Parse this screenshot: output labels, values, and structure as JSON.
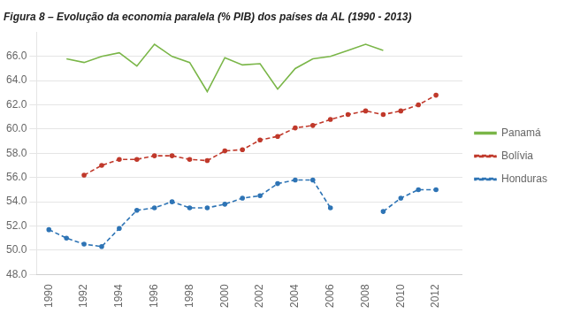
{
  "chart_data": {
    "type": "line",
    "title": "Figura 8 – Evolução da economia paralela (% PIB) dos países da AL (1990 - 2013)",
    "x": [
      1990,
      1991,
      1992,
      1993,
      1994,
      1995,
      1996,
      1997,
      1998,
      1999,
      2000,
      2001,
      2002,
      2003,
      2004,
      2005,
      2006,
      2007,
      2008,
      2009,
      2010,
      2011,
      2012,
      2013
    ],
    "series": [
      {
        "name": "Panamá",
        "color": "#7ab648",
        "line_style": "solid",
        "marker": "none",
        "values": [
          null,
          65.8,
          65.5,
          66.0,
          66.3,
          65.2,
          67.0,
          66.0,
          65.5,
          63.1,
          65.9,
          65.3,
          65.4,
          63.3,
          65.0,
          65.8,
          66.0,
          66.5,
          67.0,
          66.5,
          null,
          null,
          null,
          null
        ]
      },
      {
        "name": "Bolívia",
        "color": "#c0392b",
        "line_style": "dashed",
        "marker": "circle",
        "values": [
          null,
          null,
          56.2,
          57.0,
          57.5,
          57.5,
          57.8,
          57.8,
          57.5,
          57.4,
          58.2,
          58.3,
          59.1,
          59.4,
          60.1,
          60.3,
          60.8,
          61.2,
          61.5,
          61.2,
          61.5,
          62.0,
          62.8,
          null
        ]
      },
      {
        "name": "Honduras",
        "color": "#2e74b5",
        "line_style": "dashed",
        "marker": "circle",
        "values": [
          51.7,
          51.0,
          50.5,
          50.3,
          51.8,
          53.3,
          53.5,
          54.0,
          53.5,
          53.5,
          53.8,
          54.3,
          54.5,
          55.5,
          55.8,
          55.8,
          53.5,
          null,
          null,
          53.2,
          54.3,
          55.0,
          55.0,
          null
        ]
      }
    ],
    "xlim": [
      1989.3,
      2013.5
    ],
    "xticks": [
      1990,
      1992,
      1994,
      1996,
      1998,
      2000,
      2002,
      2004,
      2006,
      2008,
      2010,
      2012
    ],
    "ylim": [
      48.0,
      68.0
    ],
    "yticks": [
      {
        "value": 48,
        "label": "48.0"
      },
      {
        "value": 50,
        "label": "50.0"
      },
      {
        "value": 52,
        "label": "52.0"
      },
      {
        "value": 54,
        "label": "54.0"
      },
      {
        "value": 56,
        "label": "56.0"
      },
      {
        "value": 58,
        "label": "58.0"
      },
      {
        "value": 60,
        "label": "60.0"
      },
      {
        "value": 62,
        "label": "62.0"
      },
      {
        "value": 64,
        "label": "64.0"
      },
      {
        "value": 66,
        "label": "66.0"
      }
    ],
    "grid": "y",
    "legend": "right"
  }
}
